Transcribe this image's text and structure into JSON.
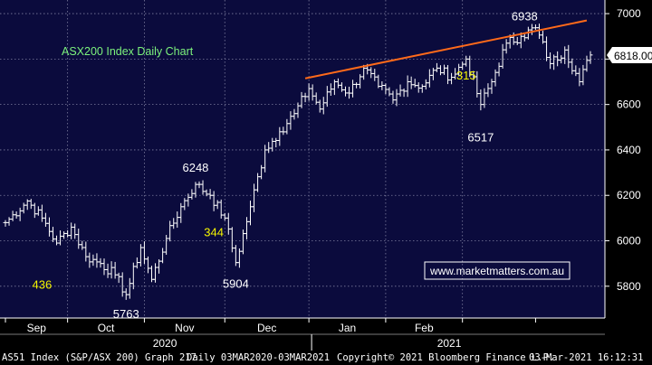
{
  "chart_data": {
    "type": "ohlc",
    "title": "ASX200 Index Daily Chart",
    "watermark": "www.marketmatters.com.au",
    "last_price_label": "6818.00",
    "ylim": [
      5660,
      7060
    ],
    "yticks": [
      5800,
      6000,
      6200,
      6400,
      6600,
      6800,
      7000
    ],
    "month_labels": [
      "Sep",
      "Oct",
      "Nov",
      "Dec",
      "Jan",
      "Feb"
    ],
    "year_labels": [
      "2020",
      "2021"
    ],
    "annotations": [
      {
        "text": "6938",
        "color": "#ffffff"
      },
      {
        "text": "6248",
        "color": "#ffffff"
      },
      {
        "text": "5904",
        "color": "#ffffff"
      },
      {
        "text": "5763",
        "color": "#ffffff"
      },
      {
        "text": "6517",
        "color": "#ffffff"
      },
      {
        "text": "436",
        "color": "#f5f500"
      },
      {
        "text": "344",
        "color": "#f5f500"
      },
      {
        "text": "315",
        "color": "#f5f500"
      }
    ],
    "trendline": {
      "color": "#ff6a1a",
      "from": [
        6715
      ],
      "to": [
        6970
      ]
    },
    "anchors": [
      [
        0,
        6080
      ],
      [
        6,
        6175
      ],
      [
        10,
        6100
      ],
      [
        14,
        5990
      ],
      [
        18,
        6060
      ],
      [
        22,
        5930
      ],
      [
        26,
        5900
      ],
      [
        30,
        5850
      ],
      [
        33,
        5763
      ],
      [
        37,
        5970
      ],
      [
        40,
        5830
      ],
      [
        44,
        6010
      ],
      [
        48,
        6150
      ],
      [
        52,
        6248
      ],
      [
        56,
        6200
      ],
      [
        60,
        6100
      ],
      [
        63,
        5904
      ],
      [
        67,
        6150
      ],
      [
        71,
        6400
      ],
      [
        75,
        6480
      ],
      [
        79,
        6560
      ],
      [
        83,
        6670
      ],
      [
        86,
        6580
      ],
      [
        90,
        6700
      ],
      [
        94,
        6650
      ],
      [
        98,
        6760
      ],
      [
        102,
        6680
      ],
      [
        106,
        6620
      ],
      [
        110,
        6700
      ],
      [
        114,
        6680
      ],
      [
        118,
        6760
      ],
      [
        122,
        6720
      ],
      [
        126,
        6800
      ],
      [
        130,
        6600
      ],
      [
        133,
        6700
      ],
      [
        137,
        6870
      ],
      [
        141,
        6900
      ],
      [
        145,
        6938
      ],
      [
        149,
        6780
      ],
      [
        153,
        6840
      ],
      [
        157,
        6700
      ],
      [
        160,
        6818
      ]
    ],
    "colors": {
      "plot_bg": "#0b0b3d",
      "grid": "#7d7d9e",
      "bars": "#ffffff",
      "title": "#7cf27c",
      "trendline": "#ff6a1a",
      "annotation_yellow": "#f5f500",
      "watermark": "#ffffff",
      "watermark_border": "#ffffff"
    }
  },
  "status": {
    "ticker": "AS51 Index (S&P/ASX 200) Graph 217",
    "range": "Daily 03MAR2020-03MAR2021",
    "copyright": "Copyright© 2021 Bloomberg Finance L.P.",
    "timestamp": "03-Mar-2021 16:12:31"
  }
}
